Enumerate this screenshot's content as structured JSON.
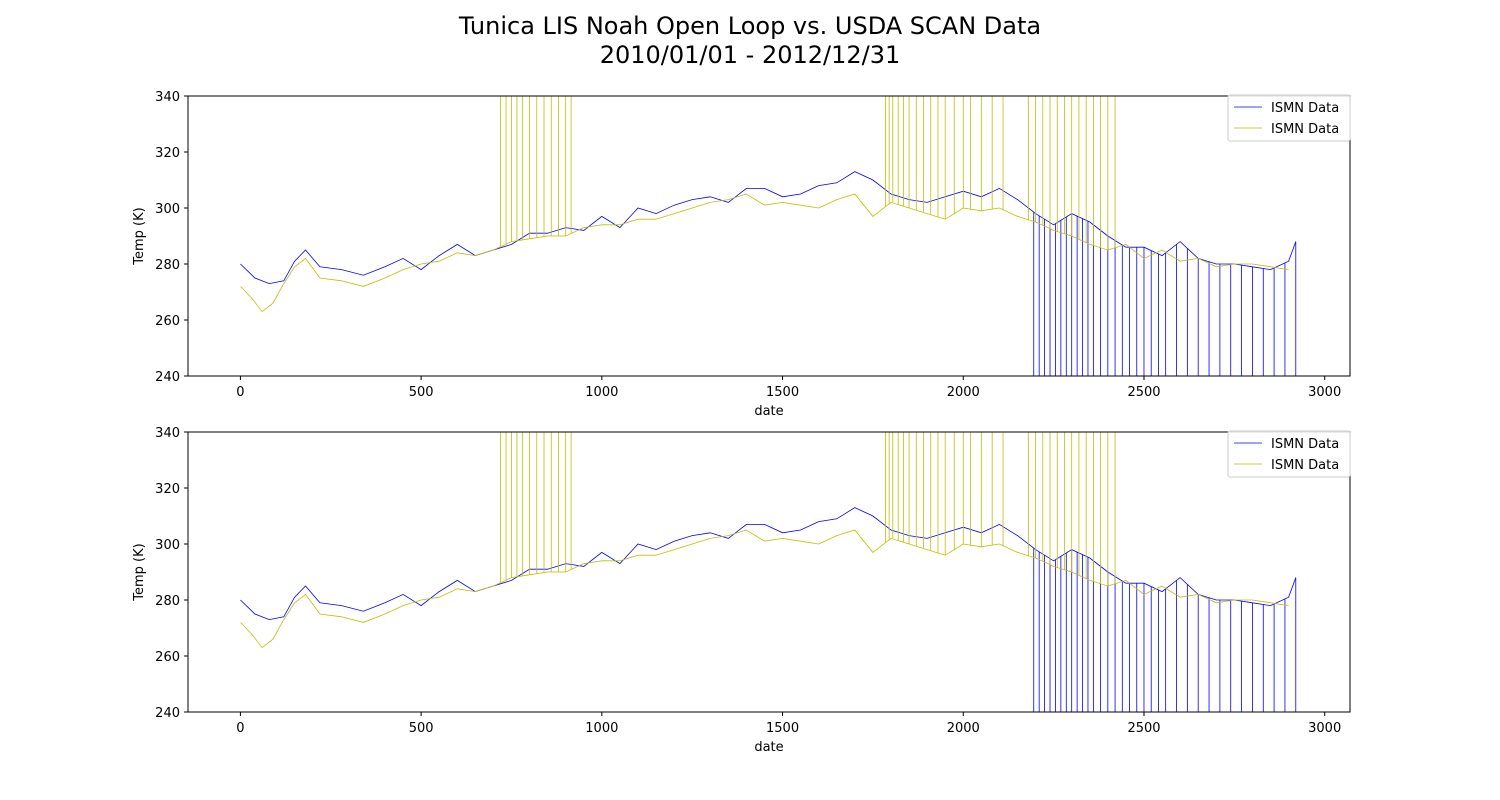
{
  "figure": {
    "title_line1": "Tunica LIS Noah Open Loop vs. USDA SCAN Data",
    "title_line2": "2010/01/01 - 2012/12/31"
  },
  "colors": {
    "series_blue": "#0000ff",
    "series_yellow": "#bfbf00",
    "legend_border": "#cccccc"
  },
  "chart_data": [
    {
      "type": "line",
      "title": "",
      "xlabel": "date",
      "ylabel": "Temp (K)",
      "xlim": [
        -145,
        3070
      ],
      "ylim": [
        240,
        340
      ],
      "xticks": [
        0,
        500,
        1000,
        1500,
        2000,
        2500,
        3000
      ],
      "yticks": [
        240,
        260,
        280,
        300,
        320,
        340
      ],
      "grid": false,
      "legend_placement": "top-right",
      "legend_entries": [
        "ISMN Data",
        "ISMN Data"
      ],
      "series": [
        {
          "name": "ISMN Data",
          "color": "#0000ff",
          "x": [
            0,
            40,
            80,
            120,
            150,
            180,
            220,
            280,
            340,
            400,
            450,
            500,
            550,
            600,
            650,
            700,
            750,
            800,
            850,
            900,
            950,
            1000,
            1050,
            1100,
            1150,
            1200,
            1250,
            1300,
            1350,
            1400,
            1450,
            1500,
            1550,
            1600,
            1650,
            1700,
            1750,
            1800,
            1850,
            1900,
            1950,
            2000,
            2050,
            2100,
            2150,
            2200,
            2250,
            2300,
            2350,
            2400,
            2450,
            2500,
            2550,
            2600,
            2650,
            2700,
            2750,
            2800,
            2850,
            2900,
            2920
          ],
          "values": [
            280,
            275,
            273,
            274,
            281,
            285,
            279,
            278,
            276,
            279,
            282,
            278,
            283,
            287,
            283,
            285,
            287,
            291,
            291,
            293,
            292,
            297,
            293,
            300,
            298,
            301,
            303,
            304,
            302,
            307,
            307,
            304,
            305,
            308,
            309,
            313,
            310,
            305,
            303,
            302,
            304,
            306,
            304,
            307,
            303,
            298,
            294,
            298,
            295,
            290,
            286,
            286,
            283,
            288,
            282,
            280,
            280,
            279,
            278,
            281,
            288
          ],
          "dropout_spikes_x": [
            2195,
            2210,
            2225,
            2240,
            2255,
            2270,
            2285,
            2300,
            2315,
            2330,
            2345,
            2360,
            2380,
            2400,
            2420,
            2440,
            2460,
            2480,
            2500,
            2520,
            2540,
            2560,
            2590,
            2620,
            2650,
            2680,
            2710,
            2740,
            2770,
            2800,
            2830,
            2860,
            2890,
            2920
          ],
          "dropout_spikes_value": 240
        },
        {
          "name": "ISMN Data",
          "color": "#bfbf00",
          "x": [
            0,
            30,
            60,
            90,
            120,
            150,
            180,
            220,
            280,
            340,
            400,
            450,
            500,
            550,
            600,
            650,
            700,
            750,
            800,
            850,
            900,
            950,
            1000,
            1050,
            1100,
            1150,
            1200,
            1250,
            1300,
            1350,
            1400,
            1450,
            1500,
            1550,
            1600,
            1650,
            1700,
            1750,
            1800,
            1850,
            1900,
            1950,
            2000,
            2050,
            2100,
            2150,
            2200,
            2250,
            2300,
            2350,
            2400,
            2450,
            2500,
            2550,
            2600,
            2650,
            2700,
            2750,
            2800,
            2850,
            2900
          ],
          "values": [
            272,
            268,
            263,
            266,
            273,
            279,
            282,
            275,
            274,
            272,
            275,
            278,
            280,
            281,
            284,
            283,
            285,
            288,
            289,
            290,
            290,
            293,
            294,
            294,
            296,
            296,
            298,
            300,
            302,
            303,
            305,
            301,
            302,
            301,
            300,
            303,
            305,
            297,
            302,
            300,
            298,
            296,
            300,
            299,
            300,
            297,
            295,
            292,
            290,
            287,
            285,
            287,
            282,
            285,
            281,
            282,
            279,
            280,
            280,
            279,
            278
          ],
          "spikes_to_top_x": [
            720,
            735,
            750,
            765,
            780,
            800,
            820,
            840,
            860,
            880,
            900,
            915,
            1785,
            1795,
            1805,
            1820,
            1835,
            1850,
            1870,
            1890,
            1910,
            1930,
            1950,
            1975,
            2000,
            2020,
            2050,
            2080,
            2110,
            2180,
            2200,
            2220,
            2240,
            2260,
            2280,
            2300,
            2320,
            2340,
            2360,
            2380,
            2400,
            2420
          ],
          "spikes_to_top_value": 340
        }
      ]
    },
    {
      "type": "line",
      "title": "",
      "xlabel": "date",
      "ylabel": "Temp (K)",
      "xlim": [
        -145,
        3070
      ],
      "ylim": [
        240,
        340
      ],
      "xticks": [
        0,
        500,
        1000,
        1500,
        2000,
        2500,
        3000
      ],
      "yticks": [
        240,
        260,
        280,
        300,
        320,
        340
      ],
      "grid": false,
      "legend_placement": "top-right",
      "legend_entries": [
        "ISMN Data",
        "ISMN Data"
      ],
      "series": [
        {
          "name": "ISMN Data",
          "color": "#0000ff",
          "x": [
            0,
            40,
            80,
            120,
            150,
            180,
            220,
            280,
            340,
            400,
            450,
            500,
            550,
            600,
            650,
            700,
            750,
            800,
            850,
            900,
            950,
            1000,
            1050,
            1100,
            1150,
            1200,
            1250,
            1300,
            1350,
            1400,
            1450,
            1500,
            1550,
            1600,
            1650,
            1700,
            1750,
            1800,
            1850,
            1900,
            1950,
            2000,
            2050,
            2100,
            2150,
            2200,
            2250,
            2300,
            2350,
            2400,
            2450,
            2500,
            2550,
            2600,
            2650,
            2700,
            2750,
            2800,
            2850,
            2900,
            2920
          ],
          "values": [
            280,
            275,
            273,
            274,
            281,
            285,
            279,
            278,
            276,
            279,
            282,
            278,
            283,
            287,
            283,
            285,
            287,
            291,
            291,
            293,
            292,
            297,
            293,
            300,
            298,
            301,
            303,
            304,
            302,
            307,
            307,
            304,
            305,
            308,
            309,
            313,
            310,
            305,
            303,
            302,
            304,
            306,
            304,
            307,
            303,
            298,
            294,
            298,
            295,
            290,
            286,
            286,
            283,
            288,
            282,
            280,
            280,
            279,
            278,
            281,
            288
          ],
          "dropout_spikes_x": [
            2195,
            2210,
            2225,
            2240,
            2255,
            2270,
            2285,
            2300,
            2315,
            2330,
            2345,
            2360,
            2380,
            2400,
            2420,
            2440,
            2460,
            2480,
            2500,
            2520,
            2540,
            2560,
            2590,
            2620,
            2650,
            2680,
            2710,
            2740,
            2770,
            2800,
            2830,
            2860,
            2890,
            2920
          ],
          "dropout_spikes_value": 240
        },
        {
          "name": "ISMN Data",
          "color": "#bfbf00",
          "x": [
            0,
            30,
            60,
            90,
            120,
            150,
            180,
            220,
            280,
            340,
            400,
            450,
            500,
            550,
            600,
            650,
            700,
            750,
            800,
            850,
            900,
            950,
            1000,
            1050,
            1100,
            1150,
            1200,
            1250,
            1300,
            1350,
            1400,
            1450,
            1500,
            1550,
            1600,
            1650,
            1700,
            1750,
            1800,
            1850,
            1900,
            1950,
            2000,
            2050,
            2100,
            2150,
            2200,
            2250,
            2300,
            2350,
            2400,
            2450,
            2500,
            2550,
            2600,
            2650,
            2700,
            2750,
            2800,
            2850,
            2900
          ],
          "values": [
            272,
            268,
            263,
            266,
            273,
            279,
            282,
            275,
            274,
            272,
            275,
            278,
            280,
            281,
            284,
            283,
            285,
            288,
            289,
            290,
            290,
            293,
            294,
            294,
            296,
            296,
            298,
            300,
            302,
            303,
            305,
            301,
            302,
            301,
            300,
            303,
            305,
            297,
            302,
            300,
            298,
            296,
            300,
            299,
            300,
            297,
            295,
            292,
            290,
            287,
            285,
            287,
            282,
            285,
            281,
            282,
            279,
            280,
            280,
            279,
            278
          ],
          "spikes_to_top_x": [
            720,
            735,
            750,
            765,
            780,
            800,
            820,
            840,
            860,
            880,
            900,
            915,
            1785,
            1795,
            1805,
            1820,
            1835,
            1850,
            1870,
            1890,
            1910,
            1930,
            1950,
            1975,
            2000,
            2020,
            2050,
            2080,
            2110,
            2180,
            2200,
            2220,
            2240,
            2260,
            2280,
            2300,
            2320,
            2340,
            2360,
            2380,
            2400,
            2420
          ],
          "spikes_to_top_value": 340
        }
      ]
    }
  ]
}
